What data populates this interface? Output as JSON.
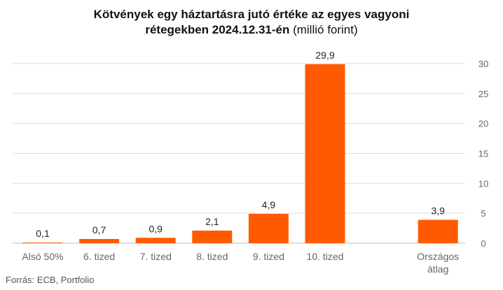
{
  "title": {
    "line1": "Kötvények egy háztartásra jutó értéke az egyes vagyoni",
    "line2_bold": "rétegekben 2024.12.31-én",
    "line2_normal": " (millió forint)"
  },
  "source": "Forrás: ECB, Portfolio",
  "colors": {
    "bar": "#ff5a00",
    "grid": "#dddddd",
    "axis": "#bbbbbb",
    "tick_text": "#666666",
    "label_text": "#222222"
  },
  "chart_data": {
    "type": "bar",
    "categories": [
      [
        "Alsó 50%"
      ],
      [
        "6. tized"
      ],
      [
        "7. tized"
      ],
      [
        "8. tized"
      ],
      [
        "9. tized"
      ],
      [
        "10. tized"
      ],
      [
        ""
      ],
      [
        "Országos",
        "átlag"
      ]
    ],
    "values": [
      0.1,
      0.7,
      0.9,
      2.1,
      4.9,
      29.9,
      null,
      3.9
    ],
    "data_labels": [
      "0,1",
      "0,7",
      "0,9",
      "2,1",
      "4,9",
      "29,9",
      "",
      "3,9"
    ],
    "ylim": [
      0,
      30
    ],
    "yticks": [
      0,
      5,
      10,
      15,
      20,
      25,
      30
    ],
    "ytick_labels": [
      "0",
      "5",
      "10",
      "15",
      "20",
      "25",
      "30"
    ],
    "y_axis_side": "right",
    "grid": true,
    "legend": false
  }
}
